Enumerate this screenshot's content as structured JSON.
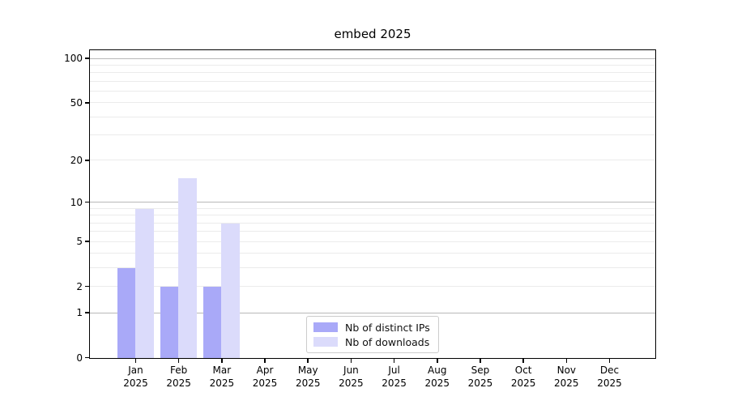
{
  "title": "embed 2025",
  "colors": {
    "bar_distinct_ips": "#a9a9f8",
    "bar_downloads": "#dbdbfb",
    "grid_major": "#b8b8b8",
    "grid_minor": "#ebebeb",
    "axis": "#000000",
    "legend_border": "#cccccc"
  },
  "chart_data": {
    "type": "bar",
    "title": "embed 2025",
    "xlabel": "",
    "ylabel": "",
    "yscale": "log1p",
    "ylim": [
      0,
      113
    ],
    "grid": "on",
    "legend_position": "lower center",
    "categories": [
      {
        "month": "Jan",
        "year": "2025"
      },
      {
        "month": "Feb",
        "year": "2025"
      },
      {
        "month": "Mar",
        "year": "2025"
      },
      {
        "month": "Apr",
        "year": "2025"
      },
      {
        "month": "May",
        "year": "2025"
      },
      {
        "month": "Jun",
        "year": "2025"
      },
      {
        "month": "Jul",
        "year": "2025"
      },
      {
        "month": "Aug",
        "year": "2025"
      },
      {
        "month": "Sep",
        "year": "2025"
      },
      {
        "month": "Oct",
        "year": "2025"
      },
      {
        "month": "Nov",
        "year": "2025"
      },
      {
        "month": "Dec",
        "year": "2025"
      }
    ],
    "series": [
      {
        "name": "Nb of distinct IPs",
        "color": "#a9a9f8",
        "values": [
          3,
          2,
          2,
          0,
          0,
          0,
          0,
          0,
          0,
          0,
          0,
          0
        ]
      },
      {
        "name": "Nb of downloads",
        "color": "#dbdbfb",
        "values": [
          9,
          15,
          7,
          0,
          0,
          0,
          0,
          0,
          0,
          0,
          0,
          0
        ]
      }
    ],
    "yticks": [
      0,
      1,
      2,
      5,
      10,
      20,
      50,
      100
    ],
    "ytick_major_gridlines": [
      1,
      10,
      100
    ],
    "ytick_minor_gridlines": [
      2,
      3,
      4,
      5,
      6,
      7,
      8,
      9,
      20,
      30,
      40,
      50,
      60,
      70,
      80,
      90
    ]
  }
}
